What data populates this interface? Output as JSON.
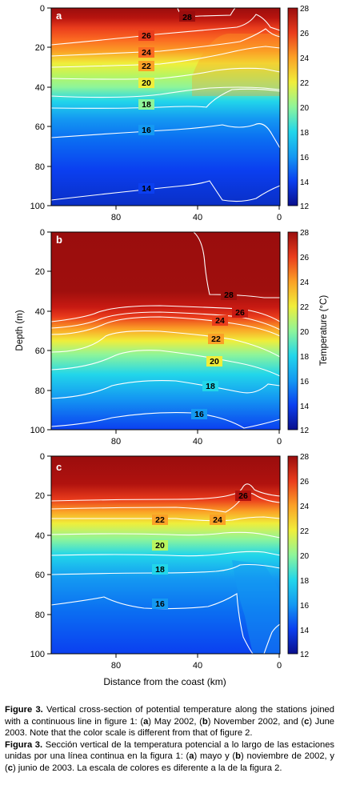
{
  "figure": {
    "panels": [
      {
        "label": "a",
        "y_ticks": [
          "0",
          "20",
          "40",
          "60",
          "80",
          "100"
        ],
        "x_ticks": [
          "80",
          "40",
          "0"
        ],
        "isotherm_labels": [
          "28",
          "26",
          "24",
          "22",
          "20",
          "18",
          "16",
          "14"
        ]
      },
      {
        "label": "b",
        "y_ticks": [
          "0",
          "20",
          "40",
          "60",
          "80",
          "100"
        ],
        "x_ticks": [
          "80",
          "40",
          "0"
        ],
        "isotherm_labels": [
          "28",
          "26",
          "24",
          "22",
          "20",
          "18",
          "16"
        ]
      },
      {
        "label": "c",
        "y_ticks": [
          "0",
          "20",
          "40",
          "60",
          "80",
          "100"
        ],
        "x_ticks": [
          "80",
          "40",
          "0"
        ],
        "isotherm_labels": [
          "26",
          "24",
          "22",
          "20",
          "18",
          "16"
        ]
      }
    ],
    "colorbar_ticks": [
      "28",
      "26",
      "24",
      "22",
      "20",
      "18",
      "16",
      "14",
      "12"
    ],
    "colorbar_label": "Temperature (°C)",
    "ylabel": "Depth (m)",
    "xlabel": "Distance from the coast (km)",
    "colors": {
      "t12": "#0a0f8c",
      "t14": "#0b3ff0",
      "t16": "#1499f2",
      "t18": "#22d6ea",
      "t20": "#8ef59a",
      "t22": "#f0ee3a",
      "t24": "#fba126",
      "t26": "#ea3c1c",
      "t28": "#9a0d0d"
    }
  },
  "caption": {
    "en_prefix": "Figure 3.",
    "en_text_1": " Vertical cross-section of potential temperature along the stations joined with a continuous line in figure 1: (",
    "en_a": "a",
    "en_text_2": ") May 2002, (",
    "en_b": "b",
    "en_text_3": ") November 2002, and (",
    "en_c": "c",
    "en_text_4": ") June 2003. Note that the color scale is different from that of figure 2.",
    "es_prefix": "Figura 3.",
    "es_text_1": " Sección vertical de la temperatura potencial a lo largo de las estaciones unidas por una línea continua en la figura 1: (",
    "es_a": "a",
    "es_text_2": ") mayo y (",
    "es_b": "b",
    "es_text_3": ") noviembre de 2002, y (",
    "es_c": "c",
    "es_text_4": ") junio de 2003. La escala de colores es diferente a la de la figura 2."
  }
}
